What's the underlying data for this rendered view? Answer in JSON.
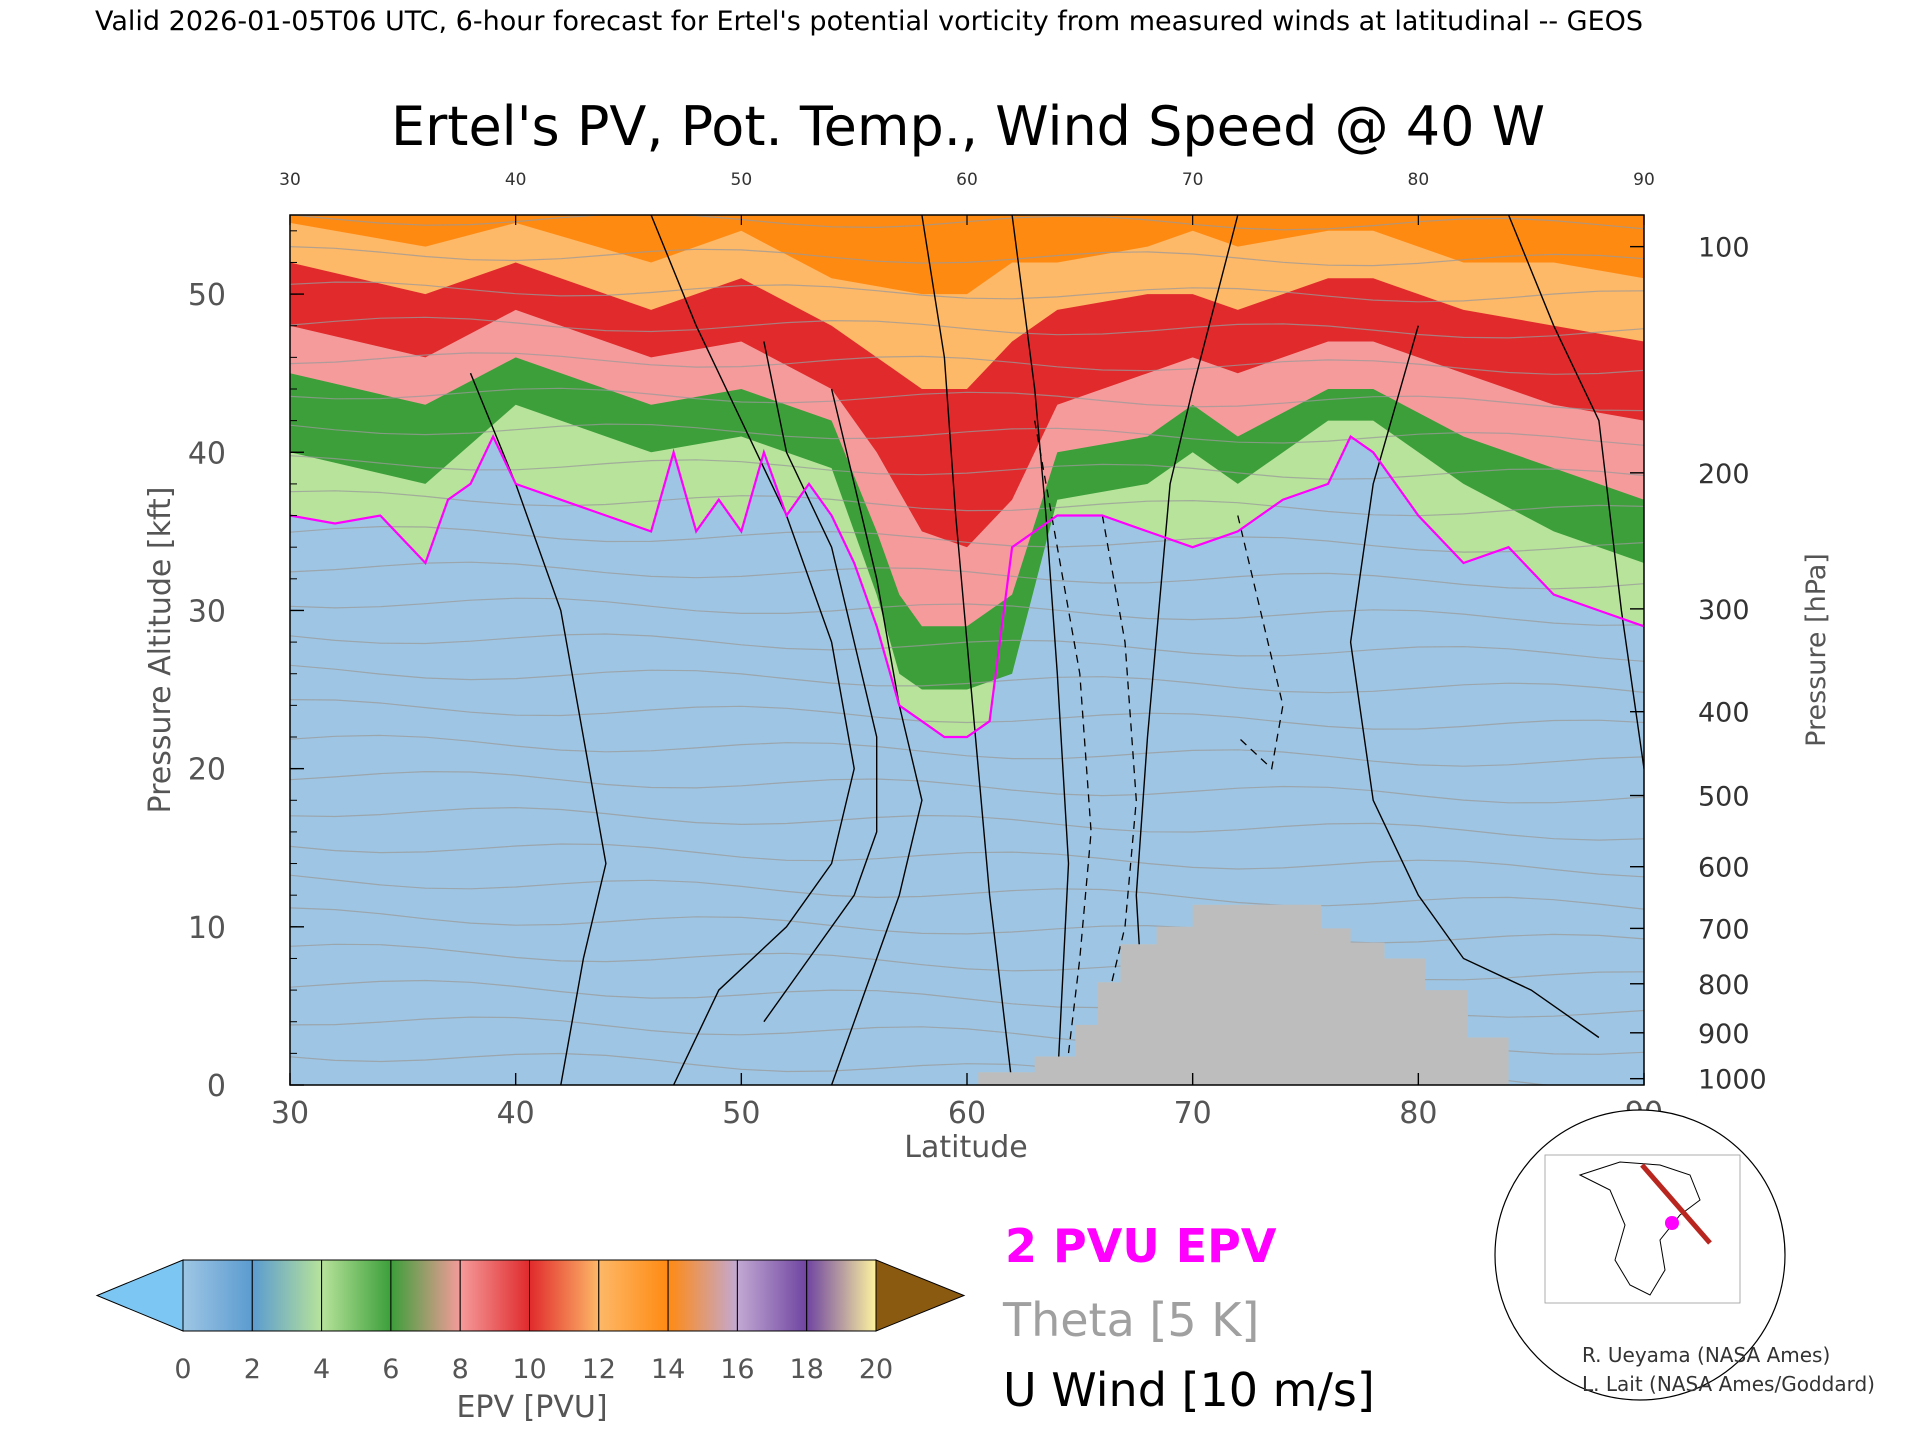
{
  "header": "Valid 2026-01-05T06 UTC, 6-hour forecast for Ertel's potential vorticity from measured winds at latitudinal -- GEOS",
  "chart_data": {
    "type": "heatmap",
    "title": "Ertel's PV, Pot. Temp., Wind Speed @ 40 W",
    "xlabel": "Latitude",
    "ylabel": "Pressure Altitude [kft]",
    "y2label": "Pressure [hPa]",
    "xlim": [
      30,
      90
    ],
    "ylim": [
      0,
      55
    ],
    "x_ticks": [
      30,
      40,
      50,
      60,
      70,
      80,
      90
    ],
    "top_x_ticks": [
      "30",
      "40",
      "50",
      "60",
      "70",
      "80",
      "90"
    ],
    "y_ticks": [
      0,
      10,
      20,
      30,
      40,
      50
    ],
    "pressure_ticks": [
      {
        "label": "100",
        "kft": 53.0
      },
      {
        "label": "200",
        "kft": 38.7
      },
      {
        "label": "300",
        "kft": 30.1
      },
      {
        "label": "400",
        "kft": 23.6
      },
      {
        "label": "500",
        "kft": 18.3
      },
      {
        "label": "600",
        "kft": 13.8
      },
      {
        "label": "700",
        "kft": 9.9
      },
      {
        "label": "800",
        "kft": 6.4
      },
      {
        "label": "900",
        "kft": 3.3
      },
      {
        "label": "1000",
        "kft": 0.4
      }
    ],
    "tropopause_2pvu": {
      "lat": [
        30,
        32,
        34,
        36,
        37,
        38,
        39,
        40,
        42,
        44,
        46,
        47,
        48,
        49,
        50,
        51,
        52,
        53,
        54,
        55,
        56,
        57,
        58,
        59,
        60,
        61,
        62,
        63,
        64,
        66,
        68,
        70,
        72,
        74,
        76,
        77,
        78,
        80,
        82,
        84,
        86,
        88,
        90
      ],
      "kft": [
        36,
        35.5,
        36,
        33,
        37,
        38,
        41,
        38,
        37,
        36,
        35,
        40,
        35,
        37,
        35,
        40,
        36,
        38,
        36,
        33,
        29,
        24,
        23,
        22,
        22,
        23,
        34,
        35,
        36,
        36,
        35,
        34,
        35,
        37,
        38,
        41,
        40,
        36,
        33,
        34,
        31,
        30,
        29
      ]
    },
    "epv_layers": [
      {
        "pvu": 4,
        "lat": [
          30,
          36,
          40,
          46,
          50,
          54,
          56,
          57,
          58,
          60,
          62,
          64,
          68,
          70,
          72,
          76,
          78,
          82,
          86,
          90
        ],
        "kft": [
          40,
          38,
          43,
          40,
          41,
          39,
          31,
          26,
          25,
          25,
          26,
          37,
          38,
          40,
          38,
          42,
          42,
          38,
          35,
          33
        ]
      },
      {
        "pvu": 6,
        "lat": [
          30,
          36,
          40,
          46,
          50,
          54,
          56,
          57,
          58,
          60,
          62,
          64,
          68,
          70,
          72,
          76,
          78,
          82,
          86,
          90
        ],
        "kft": [
          45,
          43,
          46,
          43,
          44,
          42,
          35,
          31,
          29,
          29,
          31,
          40,
          41,
          43,
          41,
          44,
          44,
          41,
          39,
          37
        ]
      },
      {
        "pvu": 8,
        "lat": [
          30,
          36,
          40,
          46,
          50,
          54,
          56,
          58,
          60,
          62,
          64,
          68,
          70,
          72,
          76,
          78,
          82,
          86,
          90
        ],
        "kft": [
          48,
          46,
          49,
          46,
          47,
          44,
          40,
          35,
          34,
          37,
          43,
          45,
          46,
          45,
          47,
          47,
          45,
          43,
          42
        ]
      },
      {
        "pvu": 10,
        "lat": [
          30,
          36,
          40,
          46,
          50,
          54,
          58,
          60,
          62,
          64,
          68,
          70,
          72,
          76,
          78,
          82,
          86,
          90
        ],
        "kft": [
          52,
          50,
          52,
          49,
          51,
          48,
          44,
          44,
          47,
          49,
          50,
          50,
          49,
          51,
          51,
          49,
          48,
          47
        ]
      },
      {
        "pvu": 12,
        "lat": [
          30,
          36,
          40,
          46,
          50,
          54,
          58,
          60,
          62,
          64,
          68,
          70,
          72,
          76,
          78,
          82,
          86,
          90
        ],
        "kft": [
          54.5,
          53,
          54.5,
          52,
          54,
          51,
          50,
          50,
          52,
          52,
          53,
          54,
          53,
          54,
          54,
          52,
          52,
          51
        ]
      }
    ],
    "terrain": {
      "lat": [
        60.5,
        63,
        64.8,
        65.8,
        66.8,
        68.4,
        70,
        72,
        74,
        75.7,
        77,
        78.5,
        80.3,
        82.2,
        84
      ],
      "kft": [
        0.8,
        1.8,
        3.8,
        6.5,
        8.9,
        10.0,
        11.4,
        11.4,
        11.4,
        9.9,
        9.0,
        8.0,
        6.0,
        3.0,
        0.5
      ]
    },
    "legend": {
      "colorbar_label": "EPV [PVU]",
      "colorbar_ticks": [
        "0",
        "2",
        "4",
        "6",
        "8",
        "10",
        "12",
        "14",
        "16",
        "18",
        "20"
      ],
      "colorbar_colors": [
        "#9ec6e4",
        "#5b9bd0",
        "#b7e39a",
        "#3c9f3a",
        "#f59b9b",
        "#e02a2c",
        "#fdb868",
        "#ff8a12",
        "#c2a9d3",
        "#6f44a1",
        "#fdf39f"
      ],
      "underflow_color": "#7cc6f4",
      "overflow_color": "#8a5a10",
      "entries": [
        {
          "label": "2 PVU EPV",
          "color": "#ff00ff"
        },
        {
          "label": "Theta [5 K]",
          "color": "#a0a0a0"
        },
        {
          "label": "U Wind [10 m/s]",
          "color": "#000000"
        }
      ]
    }
  },
  "credits": [
    "R. Ueyama (NASA Ames)",
    "L. Lait (NASA Ames/Goddard)"
  ]
}
